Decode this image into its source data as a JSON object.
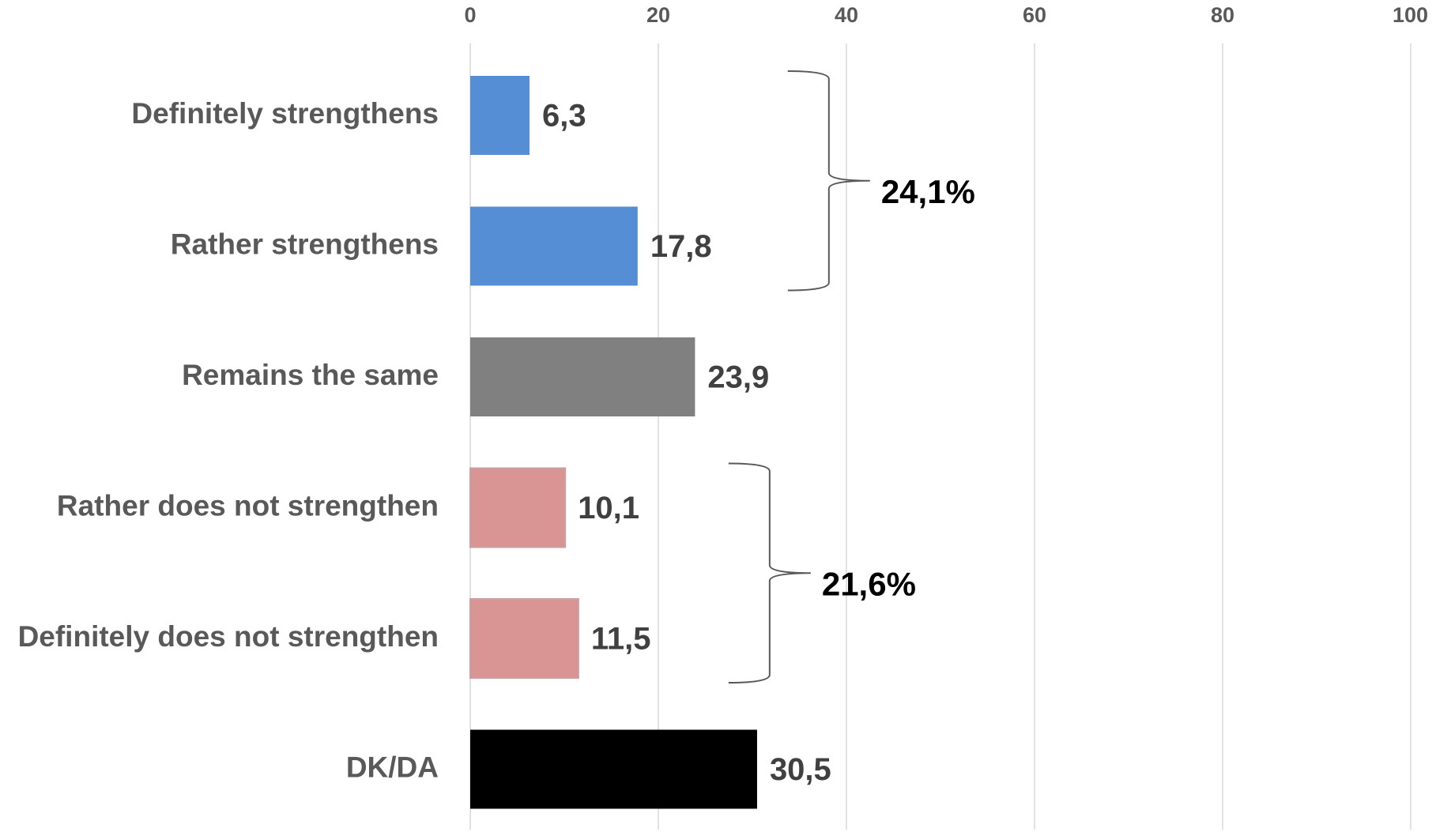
{
  "chart_data": {
    "type": "bar",
    "orientation": "horizontal",
    "categories": [
      "Definitely strengthens",
      "Rather strengthens",
      "Remains the same",
      "Rather does not strengthen",
      "Definitely does not strengthen",
      "DK/DA"
    ],
    "values": [
      6.3,
      17.8,
      23.9,
      10.1,
      11.5,
      30.5
    ],
    "value_labels": [
      "6,3",
      "17,8",
      "23,9",
      "10,1",
      "11,5",
      "30,5"
    ],
    "bar_colors": [
      "#558ED5",
      "#558ED5",
      "#808080",
      "#D99594",
      "#D99594",
      "#000000"
    ],
    "xlim": [
      0,
      100
    ],
    "x_ticks": [
      0,
      20,
      40,
      60,
      80,
      100
    ],
    "x_tick_labels": [
      "0",
      "20",
      "40",
      "60",
      "80",
      "100"
    ],
    "x_axis_position": "top",
    "grid": true,
    "title": "",
    "xlabel": "",
    "ylabel": "",
    "group_annotations": [
      {
        "label": "24,1%",
        "categories": [
          "Definitely strengthens",
          "Rather strengthens"
        ]
      },
      {
        "label": "21,6%",
        "categories": [
          "Rather does not strengthen",
          "Definitely does not strengthen"
        ]
      }
    ],
    "colors": {
      "category_label": "#595959",
      "tick_label": "#595959",
      "value_label": "#404040",
      "group_label": "#000000",
      "gridline": "#D9D9D9",
      "bracket": "#595959"
    }
  }
}
